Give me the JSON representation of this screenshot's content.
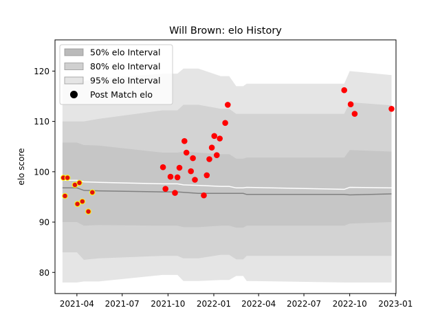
{
  "chart_data": {
    "type": "scatter",
    "title": "Will Brown: elo History",
    "xlabel": "",
    "ylabel": "elo score",
    "xlim": [
      "2021-02-16",
      "2023-01-02"
    ],
    "ylim": [
      75.8,
      126.2
    ],
    "x_ticks": [
      {
        "date": "2021-04-01",
        "label": "2021-04"
      },
      {
        "date": "2021-07-01",
        "label": "2021-07"
      },
      {
        "date": "2021-10-01",
        "label": "2021-10"
      },
      {
        "date": "2022-01-01",
        "label": "2022-01"
      },
      {
        "date": "2022-04-01",
        "label": "2022-04"
      },
      {
        "date": "2022-07-01",
        "label": "2022-07"
      },
      {
        "date": "2022-10-01",
        "label": "2022-10"
      },
      {
        "date": "2023-01-01",
        "label": "2023-01"
      }
    ],
    "y_ticks": [
      80,
      90,
      100,
      110,
      120
    ],
    "legend_position": "top-left",
    "legend": [
      {
        "label": "50% elo Interval",
        "kind": "patch",
        "color": "#a9a9a9",
        "opacity": 0.8
      },
      {
        "label": "80% elo Interval",
        "kind": "patch",
        "color": "#a9a9a9",
        "opacity": 0.55
      },
      {
        "label": "95% elo Interval",
        "kind": "patch",
        "color": "#a9a9a9",
        "opacity": 0.3
      },
      {
        "label": "Post Match elo",
        "kind": "marker",
        "color": "#000000"
      }
    ],
    "bands": {
      "dates": [
        "2021-03-03",
        "2021-04-01",
        "2021-04-15",
        "2021-05-15",
        "2021-09-20",
        "2021-10-20",
        "2021-11-01",
        "2021-12-01",
        "2022-01-15",
        "2022-02-01",
        "2022-02-15",
        "2022-03-01",
        "2022-03-08",
        "2022-09-20",
        "2022-10-01",
        "2022-12-24"
      ],
      "p95_upper": [
        117.5,
        117.5,
        118.0,
        118.5,
        119.5,
        119.5,
        120.5,
        120.5,
        119.0,
        119.0,
        117.0,
        117.0,
        117.5,
        117.5,
        120.0,
        119.2
      ],
      "p95_lower": [
        78.0,
        78.0,
        78.2,
        78.2,
        79.5,
        79.5,
        78.3,
        78.3,
        78.5,
        78.5,
        79.3,
        79.3,
        78.3,
        78.0,
        78.0,
        78.0
      ],
      "p80_upper": [
        110.0,
        110.0,
        110.0,
        110.5,
        112.2,
        112.2,
        113.3,
        113.3,
        112.5,
        112.5,
        111.5,
        111.5,
        111.5,
        111.5,
        113.8,
        113.2
      ],
      "p80_lower": [
        84.0,
        84.0,
        82.5,
        82.8,
        83.3,
        83.3,
        82.8,
        82.8,
        83.5,
        83.5,
        82.6,
        82.6,
        83.3,
        83.3,
        83.3,
        83.3
      ],
      "p50_upper": [
        105.8,
        105.8,
        105.3,
        105.2,
        103.8,
        103.8,
        104.0,
        103.8,
        103.5,
        103.5,
        102.6,
        102.6,
        102.8,
        102.8,
        104.3,
        104.0
      ],
      "p50_lower": [
        90.0,
        90.0,
        89.3,
        89.4,
        89.3,
        89.3,
        89.0,
        89.0,
        89.3,
        89.3,
        88.9,
        88.9,
        89.3,
        89.3,
        89.7,
        90.0
      ],
      "median": [
        96.8,
        96.8,
        96.3,
        96.2,
        96.0,
        96.0,
        95.9,
        95.7,
        95.7,
        95.7,
        95.7,
        95.7,
        95.5,
        95.5,
        95.4,
        95.6
      ],
      "mean": [
        98.3,
        98.3,
        98.0,
        97.9,
        97.6,
        97.6,
        97.4,
        97.3,
        97.1,
        97.1,
        96.8,
        96.8,
        96.9,
        96.5,
        96.9,
        96.8
      ]
    },
    "series": [
      {
        "name": "Post Match elo",
        "points": [
          {
            "x": "2021-03-05",
            "y": 98.8,
            "edge": "yellow"
          },
          {
            "x": "2021-03-08",
            "y": 95.2,
            "edge": "yellow"
          },
          {
            "x": "2021-03-13",
            "y": 98.8,
            "edge": "yellow"
          },
          {
            "x": "2021-03-28",
            "y": 97.4,
            "edge": "yellow"
          },
          {
            "x": "2021-04-02",
            "y": 93.6,
            "edge": "yellow"
          },
          {
            "x": "2021-04-06",
            "y": 97.8,
            "edge": "yellow"
          },
          {
            "x": "2021-04-12",
            "y": 94.1,
            "edge": "yellow"
          },
          {
            "x": "2021-04-24",
            "y": 92.1,
            "edge": "yellow"
          },
          {
            "x": "2021-05-02",
            "y": 95.9,
            "edge": "yellow"
          },
          {
            "x": "2021-09-21",
            "y": 100.9,
            "edge": "red"
          },
          {
            "x": "2021-09-26",
            "y": 96.6,
            "edge": "red"
          },
          {
            "x": "2021-10-06",
            "y": 99.0,
            "edge": "red"
          },
          {
            "x": "2021-10-15",
            "y": 95.8,
            "edge": "red"
          },
          {
            "x": "2021-10-20",
            "y": 98.9,
            "edge": "red"
          },
          {
            "x": "2021-10-24",
            "y": 100.8,
            "edge": "red"
          },
          {
            "x": "2021-11-03",
            "y": 106.1,
            "edge": "red"
          },
          {
            "x": "2021-11-07",
            "y": 103.8,
            "edge": "red"
          },
          {
            "x": "2021-11-16",
            "y": 100.1,
            "edge": "red"
          },
          {
            "x": "2021-11-20",
            "y": 102.7,
            "edge": "red"
          },
          {
            "x": "2021-11-24",
            "y": 98.4,
            "edge": "red"
          },
          {
            "x": "2021-12-12",
            "y": 95.3,
            "edge": "red"
          },
          {
            "x": "2021-12-18",
            "y": 99.3,
            "edge": "red"
          },
          {
            "x": "2021-12-23",
            "y": 102.5,
            "edge": "red"
          },
          {
            "x": "2021-12-28",
            "y": 104.8,
            "edge": "red"
          },
          {
            "x": "2022-01-02",
            "y": 107.1,
            "edge": "red"
          },
          {
            "x": "2022-01-07",
            "y": 103.3,
            "edge": "red"
          },
          {
            "x": "2022-01-13",
            "y": 106.6,
            "edge": "red"
          },
          {
            "x": "2022-01-24",
            "y": 109.7,
            "edge": "red"
          },
          {
            "x": "2022-01-29",
            "y": 113.3,
            "edge": "red"
          },
          {
            "x": "2022-09-20",
            "y": 116.2,
            "edge": "red"
          },
          {
            "x": "2022-10-03",
            "y": 113.4,
            "edge": "red"
          },
          {
            "x": "2022-10-11",
            "y": 111.5,
            "edge": "red"
          },
          {
            "x": "2022-12-24",
            "y": 112.5,
            "edge": "red"
          }
        ]
      }
    ]
  }
}
